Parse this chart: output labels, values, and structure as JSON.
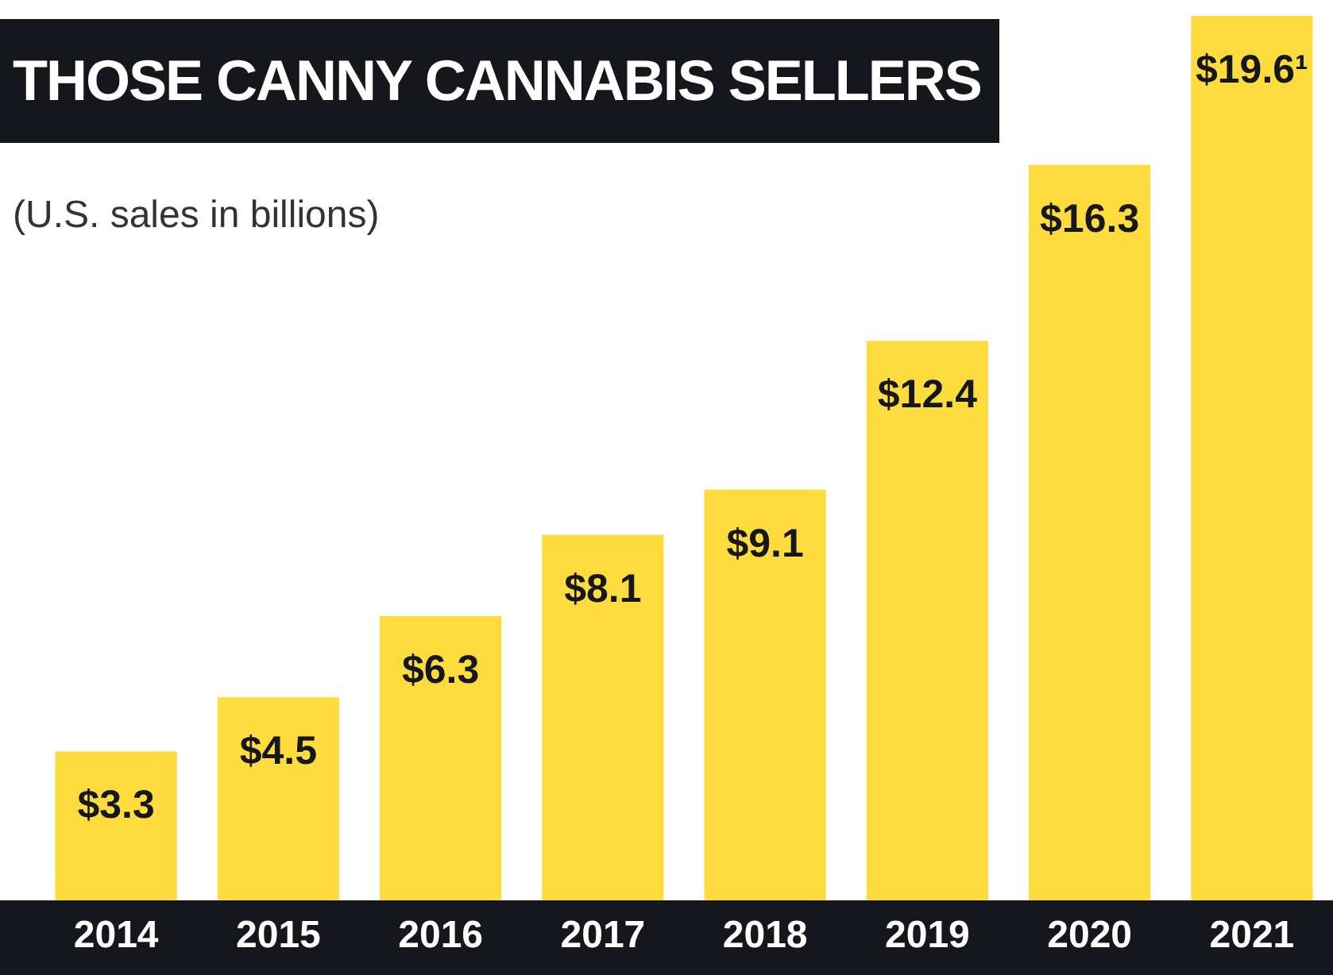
{
  "chart_data": {
    "type": "bar",
    "title": "THOSE CANNY CANNABIS SELLERS",
    "subtitle": "(U.S. sales in billions)",
    "categories": [
      "2014",
      "2015",
      "2016",
      "2017",
      "2018",
      "2019",
      "2020",
      "2021"
    ],
    "values": [
      3.3,
      4.5,
      6.3,
      8.1,
      9.1,
      12.4,
      16.3,
      19.6
    ],
    "value_labels": [
      "$3.3",
      "$4.5",
      "$6.3",
      "$8.1",
      "$9.1",
      "$12.4",
      "$16.3",
      "$19.6¹"
    ],
    "color": "#fedc3d"
  }
}
